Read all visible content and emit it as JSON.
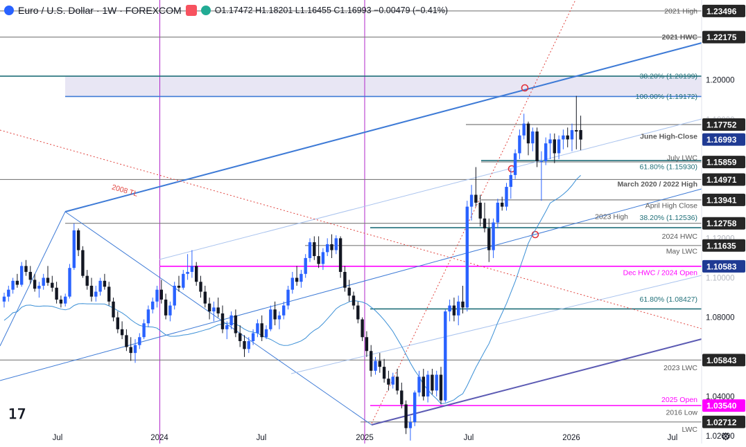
{
  "header": {
    "symbol": "Euro / U.S. Dollar · 1W · FOREXCOM",
    "ohlc": "O1.17472 H1.18201 L1.16455 C1.16993 −0.00479 (−0.41%)",
    "icons": [
      "symbol-flag-icon",
      "alert-badge-icon",
      "live-dot-icon"
    ]
  },
  "colors": {
    "up": "#2962ff",
    "down": "#131722",
    "trend_blue": "#3d7ad6",
    "magenta": "#ff00ff",
    "purple_vline": "#b026c9",
    "red_dotted": "#e0413c",
    "teal": "#1f6f78",
    "gray_line": "#7c7c7c",
    "ma_line": "#3a8fd6",
    "zone_fill": "#e8e6f4",
    "price_tag_current": "#1f3a93",
    "price_tag_level": "#262626",
    "price_tag_magenta": "#ff00ff"
  },
  "chart_data": {
    "type": "candlestick",
    "title": "Euro / U.S. Dollar · 1W · FOREXCOM",
    "x_axis": {
      "tick_labels": [
        "Jul",
        "2024",
        "Jul",
        "2025",
        "Jul",
        "2026",
        "Jul"
      ]
    },
    "y_axis": {
      "range": [
        1.0162,
        1.2405
      ],
      "tick_labels": [
        "1.20000",
        "1.08000",
        "1.04000",
        "1.02000"
      ],
      "faded_tick_labels": [
        "1.18000",
        "1.12000",
        "1.10000"
      ],
      "scale": "linear",
      "position": "right"
    },
    "grid": false,
    "price_tags": [
      {
        "text": "1.23496",
        "value": 1.23496,
        "style": "level"
      },
      {
        "text": "1.22175",
        "value": 1.22175,
        "style": "level"
      },
      {
        "text": "1.17752",
        "value": 1.17752,
        "style": "level"
      },
      {
        "text": "1.16993",
        "value": 1.16993,
        "style": "current"
      },
      {
        "text": "1.15859",
        "value": 1.15859,
        "style": "level"
      },
      {
        "text": "1.14971",
        "value": 1.14971,
        "style": "level"
      },
      {
        "text": "1.13941",
        "value": 1.13941,
        "style": "level"
      },
      {
        "text": "1.12758",
        "value": 1.12758,
        "style": "level"
      },
      {
        "text": "1.11635",
        "value": 1.11635,
        "style": "level"
      },
      {
        "text": "1.10583",
        "value": 1.10583,
        "style": "current"
      },
      {
        "text": "1.05843",
        "value": 1.05843,
        "style": "level"
      },
      {
        "text": "1.03540",
        "value": 1.0354,
        "style": "magenta"
      },
      {
        "text": "1.02712",
        "value": 1.02712,
        "style": "level"
      }
    ],
    "horizontal_levels": [
      {
        "value": 1.23496,
        "color": "gray_line"
      },
      {
        "value": 1.22175,
        "color": "gray_line"
      },
      {
        "value": 1.20199,
        "color": "teal"
      },
      {
        "value": 1.19172,
        "color": "trend_blue"
      },
      {
        "value": 1.17752,
        "color": "gray_line"
      },
      {
        "value": 1.15859,
        "color": "gray_line"
      },
      {
        "value": 1.1593,
        "color": "teal"
      },
      {
        "value": 1.14971,
        "color": "gray_line"
      },
      {
        "value": 1.13941,
        "color": "gray_line"
      },
      {
        "value": 1.12758,
        "color": "gray_line"
      },
      {
        "value": 1.12536,
        "color": "teal"
      },
      {
        "value": 1.11635,
        "color": "gray_line"
      },
      {
        "value": 1.10583,
        "color": "magenta"
      },
      {
        "value": 1.08427,
        "color": "teal"
      },
      {
        "value": 1.05843,
        "color": "gray_line"
      },
      {
        "value": 1.0354,
        "color": "magenta"
      },
      {
        "value": 1.02712,
        "color": "gray_line"
      }
    ],
    "annotations": [
      {
        "text": "2021 High",
        "value": 1.23496
      },
      {
        "text": "2021 HWC",
        "value": 1.22175
      },
      {
        "text": "38.20% (1.20199)",
        "value": 1.20199
      },
      {
        "text": "100.00% (1.19172)",
        "value": 1.19172
      },
      {
        "text": "June High-Close",
        "value": 1.1715
      },
      {
        "text": "July LWC",
        "value": 1.1608
      },
      {
        "text": "61.80% (1.15930)",
        "value": 1.1562
      },
      {
        "text": "March 2020 / 2022 High",
        "value": 1.1475
      },
      {
        "text": "April High Close",
        "value": 1.1366
      },
      {
        "text": "2023 High",
        "value": 1.131
      },
      {
        "text": "38.20% (1.12536)",
        "value": 1.1305
      },
      {
        "text": "2024 HWC",
        "value": 1.121
      },
      {
        "text": "May LWC",
        "value": 1.1135
      },
      {
        "text": "Dec HWC / 2024 Open",
        "value": 1.1027
      },
      {
        "text": "61.80% (1.08427)",
        "value": 1.0891
      },
      {
        "text": "2023 LWC",
        "value": 1.0546
      },
      {
        "text": "2025 Open",
        "value": 1.0384
      },
      {
        "text": "2016 Low",
        "value": 1.0319
      },
      {
        "text": "LWC",
        "value": 1.0234
      },
      {
        "text": "2008 TL",
        "value": 1.1442
      }
    ],
    "vertical_markers": [
      "2024",
      "2025"
    ],
    "zone": {
      "from": 1.19172,
      "to": 1.20199
    },
    "series": [
      {
        "name": "",
        "style": "candles",
        "candles": [
          [
            1.088,
            1.0925,
            1.085,
            1.0905
          ],
          [
            1.0905,
            1.096,
            1.088,
            1.094
          ],
          [
            1.094,
            1.1,
            1.092,
            1.0985
          ],
          [
            1.0985,
            1.102,
            1.095,
            1.0965
          ],
          [
            1.0965,
            1.108,
            1.0955,
            1.106
          ],
          [
            1.106,
            1.109,
            1.101,
            1.103
          ],
          [
            1.103,
            1.106,
            1.097,
            1.099
          ],
          [
            1.099,
            1.102,
            1.093,
            1.0945
          ],
          [
            1.0945,
            1.098,
            1.09,
            1.096
          ],
          [
            1.096,
            1.102,
            1.094,
            1.1
          ],
          [
            1.1,
            1.106,
            1.096,
            1.0975
          ],
          [
            1.0975,
            1.101,
            1.093,
            1.095
          ],
          [
            1.095,
            1.098,
            1.087,
            1.089
          ],
          [
            1.089,
            1.091,
            1.085,
            1.087
          ],
          [
            1.087,
            1.092,
            1.0855,
            1.0905
          ],
          [
            1.0905,
            1.107,
            1.0895,
            1.105
          ],
          [
            1.105,
            1.1275,
            1.104,
            1.124
          ],
          [
            1.124,
            1.125,
            1.111,
            1.114
          ],
          [
            1.114,
            1.116,
            1.1,
            1.101
          ],
          [
            1.101,
            1.104,
            1.094,
            1.096
          ],
          [
            1.096,
            1.1,
            1.088,
            1.0905
          ],
          [
            1.0905,
            1.096,
            1.088,
            1.093
          ],
          [
            1.093,
            1.1,
            1.091,
            1.0985
          ],
          [
            1.0985,
            1.102,
            1.094,
            1.0955
          ],
          [
            1.0955,
            1.098,
            1.086,
            1.088
          ],
          [
            1.088,
            1.09,
            1.078,
            1.08
          ],
          [
            1.08,
            1.083,
            1.072,
            1.074
          ],
          [
            1.074,
            1.078,
            1.069,
            1.071
          ],
          [
            1.071,
            1.074,
            1.063,
            1.065
          ],
          [
            1.065,
            1.07,
            1.058,
            1.062
          ],
          [
            1.062,
            1.069,
            1.057,
            1.066
          ],
          [
            1.066,
            1.072,
            1.064,
            1.07
          ],
          [
            1.07,
            1.079,
            1.069,
            1.077
          ],
          [
            1.077,
            1.086,
            1.075,
            1.084
          ],
          [
            1.084,
            1.09,
            1.082,
            1.088
          ],
          [
            1.088,
            1.096,
            1.085,
            1.094
          ],
          [
            1.094,
            1.099,
            1.087,
            1.089
          ],
          [
            1.089,
            1.092,
            1.079,
            1.081
          ],
          [
            1.081,
            1.088,
            1.078,
            1.086
          ],
          [
            1.086,
            1.098,
            1.084,
            1.096
          ],
          [
            1.096,
            1.101,
            1.093,
            1.095
          ],
          [
            1.095,
            1.104,
            1.094,
            1.102
          ],
          [
            1.102,
            1.112,
            1.099,
            1.103
          ],
          [
            1.103,
            1.114,
            1.1,
            1.106
          ],
          [
            1.106,
            1.108,
            1.096,
            1.098
          ],
          [
            1.098,
            1.101,
            1.09,
            1.093
          ],
          [
            1.093,
            1.096,
            1.085,
            1.087
          ],
          [
            1.087,
            1.09,
            1.079,
            1.083
          ],
          [
            1.083,
            1.088,
            1.078,
            1.085
          ],
          [
            1.085,
            1.09,
            1.08,
            1.082
          ],
          [
            1.082,
            1.086,
            1.072,
            1.074
          ],
          [
            1.074,
            1.078,
            1.069,
            1.076
          ],
          [
            1.076,
            1.083,
            1.074,
            1.081
          ],
          [
            1.081,
            1.084,
            1.07,
            1.072
          ],
          [
            1.072,
            1.076,
            1.065,
            1.068
          ],
          [
            1.068,
            1.071,
            1.06,
            1.064
          ],
          [
            1.064,
            1.07,
            1.062,
            1.068
          ],
          [
            1.068,
            1.074,
            1.066,
            1.072
          ],
          [
            1.072,
            1.079,
            1.07,
            1.077
          ],
          [
            1.077,
            1.081,
            1.068,
            1.07
          ],
          [
            1.07,
            1.076,
            1.069,
            1.074
          ],
          [
            1.074,
            1.086,
            1.073,
            1.084
          ],
          [
            1.084,
            1.088,
            1.076,
            1.079
          ],
          [
            1.079,
            1.083,
            1.074,
            1.081
          ],
          [
            1.081,
            1.088,
            1.079,
            1.086
          ],
          [
            1.086,
            1.096,
            1.084,
            1.094
          ],
          [
            1.094,
            1.103,
            1.092,
            1.1
          ],
          [
            1.1,
            1.106,
            1.096,
            1.098
          ],
          [
            1.098,
            1.104,
            1.095,
            1.102
          ],
          [
            1.102,
            1.112,
            1.1,
            1.11
          ],
          [
            1.11,
            1.12,
            1.108,
            1.118
          ],
          [
            1.118,
            1.121,
            1.109,
            1.111
          ],
          [
            1.111,
            1.121,
            1.105,
            1.107
          ],
          [
            1.107,
            1.115,
            1.104,
            1.113
          ],
          [
            1.113,
            1.12,
            1.111,
            1.117
          ],
          [
            1.117,
            1.122,
            1.11,
            1.114
          ],
          [
            1.114,
            1.1215,
            1.112,
            1.12
          ],
          [
            1.12,
            1.121,
            1.1,
            1.103
          ],
          [
            1.103,
            1.106,
            1.093,
            1.095
          ],
          [
            1.095,
            1.099,
            1.088,
            1.091
          ],
          [
            1.091,
            1.093,
            1.084,
            1.086
          ],
          [
            1.086,
            1.088,
            1.077,
            1.079
          ],
          [
            1.079,
            1.08,
            1.068,
            1.07
          ],
          [
            1.07,
            1.073,
            1.06,
            1.063
          ],
          [
            1.063,
            1.066,
            1.05,
            1.053
          ],
          [
            1.053,
            1.06,
            1.051,
            1.058
          ],
          [
            1.058,
            1.062,
            1.052,
            1.055
          ],
          [
            1.055,
            1.059,
            1.047,
            1.049
          ],
          [
            1.049,
            1.053,
            1.043,
            1.046
          ],
          [
            1.046,
            1.052,
            1.044,
            1.05
          ],
          [
            1.05,
            1.054,
            1.041,
            1.043
          ],
          [
            1.043,
            1.047,
            1.034,
            1.036
          ],
          [
            1.036,
            1.038,
            1.021,
            1.024
          ],
          [
            1.024,
            1.03,
            1.0177,
            1.027
          ],
          [
            1.027,
            1.043,
            1.025,
            1.042
          ],
          [
            1.042,
            1.053,
            1.04,
            1.05
          ],
          [
            1.05,
            1.054,
            1.038,
            1.04
          ],
          [
            1.04,
            1.053,
            1.037,
            1.051
          ],
          [
            1.051,
            1.054,
            1.041,
            1.043
          ],
          [
            1.043,
            1.053,
            1.04,
            1.051
          ],
          [
            1.051,
            1.055,
            1.036,
            1.038
          ],
          [
            1.038,
            1.084,
            1.037,
            1.083
          ],
          [
            1.083,
            1.089,
            1.078,
            1.086
          ],
          [
            1.086,
            1.09,
            1.078,
            1.081
          ],
          [
            1.081,
            1.091,
            1.076,
            1.088
          ],
          [
            1.088,
            1.096,
            1.082,
            1.085
          ],
          [
            1.085,
            1.139,
            1.083,
            1.136
          ],
          [
            1.136,
            1.147,
            1.129,
            1.142
          ],
          [
            1.142,
            1.156,
            1.136,
            1.138
          ],
          [
            1.138,
            1.142,
            1.126,
            1.13
          ],
          [
            1.13,
            1.138,
            1.123,
            1.125
          ],
          [
            1.125,
            1.13,
            1.108,
            1.114
          ],
          [
            1.114,
            1.13,
            1.11,
            1.128
          ],
          [
            1.128,
            1.14,
            1.125,
            1.138
          ],
          [
            1.138,
            1.141,
            1.134,
            1.136
          ],
          [
            1.136,
            1.148,
            1.134,
            1.146
          ],
          [
            1.146,
            1.155,
            1.14,
            1.152
          ],
          [
            1.152,
            1.165,
            1.15,
            1.163
          ],
          [
            1.163,
            1.175,
            1.16,
            1.172
          ],
          [
            1.172,
            1.183,
            1.17,
            1.178
          ],
          [
            1.178,
            1.179,
            1.162,
            1.168
          ],
          [
            1.168,
            1.176,
            1.164,
            1.174
          ],
          [
            1.174,
            1.176,
            1.156,
            1.159
          ],
          [
            1.159,
            1.164,
            1.139,
            1.159
          ],
          [
            1.159,
            1.171,
            1.157,
            1.168
          ],
          [
            1.168,
            1.173,
            1.16,
            1.17
          ],
          [
            1.17,
            1.173,
            1.158,
            1.163
          ],
          [
            1.163,
            1.172,
            1.16,
            1.17
          ],
          [
            1.17,
            1.175,
            1.165,
            1.172
          ],
          [
            1.172,
            1.176,
            1.166,
            1.17
          ],
          [
            1.17,
            1.178,
            1.164,
            1.1747
          ],
          [
            1.1747,
            1.192,
            1.165,
            1.174
          ],
          [
            1.17472,
            1.18201,
            1.16455,
            1.16993
          ]
        ]
      }
    ],
    "indicators": [
      {
        "name": "",
        "type": "moving_average"
      }
    ]
  }
}
